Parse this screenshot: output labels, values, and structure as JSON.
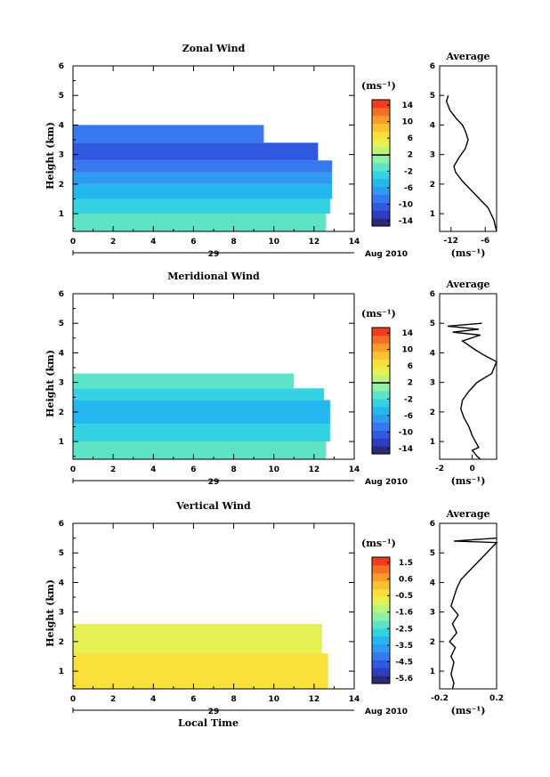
{
  "colorbar_colors": [
    "#2a2a78",
    "#2e3ec2",
    "#2f59e0",
    "#3878ee",
    "#2f9bf0",
    "#24b6ee",
    "#34d2e2",
    "#5ee3c6",
    "#8ef0a2",
    "#bcf47a",
    "#e6f052",
    "#fbe03a",
    "#fcc12e",
    "#fa9c28",
    "#f57024",
    "#ee3e1e"
  ],
  "common": {
    "x_ticks": [
      0,
      2,
      4,
      6,
      8,
      10,
      12,
      14
    ],
    "xlim": [
      0,
      14
    ],
    "date_label": "29",
    "month_label": "Aug 2010",
    "y_ticks": [
      1,
      2,
      3,
      4,
      5,
      6
    ],
    "ylim": [
      0.4,
      6
    ],
    "ylabel": "Height (km)",
    "unit_label": "(ms⁻¹)",
    "avg_title": "Average",
    "avg_xlabel": "(ms⁻¹)",
    "xlabel_bottom": "Local Time"
  },
  "chart_data": [
    {
      "type": "heatmap",
      "title": "Zonal Wind",
      "colorbar_ticks": [
        "14",
        "10",
        "6",
        "2",
        "-2",
        "-6",
        "-10",
        "-14"
      ],
      "colorbar_marker": 2,
      "colorbar_range": [
        -16,
        16
      ],
      "bands": [
        {
          "y0": 0.4,
          "y1": 1.0,
          "color": "#5ee3c6",
          "x1": 12.6
        },
        {
          "y0": 1.0,
          "y1": 1.5,
          "color": "#34d2e2",
          "x1": 12.8
        },
        {
          "y0": 1.5,
          "y1": 2.0,
          "color": "#24b6ee",
          "x1": 12.9
        },
        {
          "y0": 2.0,
          "y1": 2.4,
          "color": "#2f9bf0",
          "x1": 12.9
        },
        {
          "y0": 2.4,
          "y1": 2.8,
          "color": "#3878ee",
          "x1": 12.9
        },
        {
          "y0": 2.8,
          "y1": 3.4,
          "color": "#2f59e0",
          "x1": 12.2
        },
        {
          "y0": 3.4,
          "y1": 4.0,
          "color": "#3878ee",
          "x1": 9.5
        }
      ],
      "profile": {
        "xlim": [
          -14,
          -4
        ],
        "x_ticks": [
          -12,
          -6
        ],
        "x": [
          -12.5,
          -12.8,
          -12.2,
          -11.0,
          -10.0,
          -9.5,
          -9.0,
          -9.5,
          -10.6,
          -11.5,
          -11.2,
          -10.0,
          -8.5,
          -7.0,
          -5.5,
          -4.5,
          -4.0
        ],
        "y": [
          5.0,
          4.8,
          4.5,
          4.2,
          4.0,
          3.8,
          3.5,
          3.2,
          2.9,
          2.6,
          2.4,
          2.1,
          1.8,
          1.5,
          1.2,
          0.8,
          0.4
        ]
      }
    },
    {
      "type": "heatmap",
      "title": "Meridional Wind",
      "colorbar_ticks": [
        "14",
        "10",
        "6",
        "2",
        "-2",
        "-6",
        "-10",
        "-14"
      ],
      "colorbar_marker": 2,
      "colorbar_range": [
        -16,
        16
      ],
      "bands": [
        {
          "y0": 0.4,
          "y1": 1.0,
          "color": "#5ee3c6",
          "x1": 12.6
        },
        {
          "y0": 1.0,
          "y1": 1.6,
          "color": "#34d2e2",
          "x1": 12.8
        },
        {
          "y0": 1.6,
          "y1": 2.4,
          "color": "#24b6ee",
          "x1": 12.8
        },
        {
          "y0": 2.4,
          "y1": 2.8,
          "color": "#34d2e2",
          "x1": 12.5
        },
        {
          "y0": 2.8,
          "y1": 3.3,
          "color": "#5ee3c6",
          "x1": 11.0
        }
      ],
      "profile": {
        "xlim": [
          -2,
          1.5
        ],
        "x_ticks": [
          -2,
          0
        ],
        "x": [
          0.6,
          -1.5,
          0.4,
          -1.2,
          0.5,
          -0.6,
          0.2,
          0.8,
          1.5,
          1.2,
          0.3,
          -0.2,
          -0.6,
          -0.7,
          -0.5,
          -0.2,
          0.0,
          0.2,
          0.4,
          0.0,
          0.3,
          0.5
        ],
        "y": [
          5.0,
          4.9,
          4.8,
          4.7,
          4.6,
          4.4,
          4.1,
          3.9,
          3.7,
          3.3,
          3.0,
          2.7,
          2.4,
          2.1,
          1.8,
          1.5,
          1.2,
          1.0,
          0.8,
          0.7,
          0.5,
          0.4
        ]
      }
    },
    {
      "type": "heatmap",
      "title": "Vertical Wind",
      "colorbar_ticks": [
        "1.5",
        "0.6",
        "-0.5",
        "-1.6",
        "-2.5",
        "-3.5",
        "-4.5",
        "-5.6"
      ],
      "colorbar_marker": null,
      "colorbar_range": [
        -6,
        2
      ],
      "bands": [
        {
          "y0": 0.4,
          "y1": 1.6,
          "color": "#fbe03a",
          "x1": 12.7
        },
        {
          "y0": 1.6,
          "y1": 2.6,
          "color": "#e6f052",
          "x1": 12.4
        }
      ],
      "profile": {
        "xlim": [
          -0.2,
          0.2
        ],
        "x_ticks": [
          -0.2,
          0.2
        ],
        "x": [
          0.2,
          -0.1,
          0.2,
          -0.05,
          -0.08,
          -0.1,
          -0.12,
          -0.07,
          -0.11,
          -0.08,
          -0.13,
          -0.09,
          -0.12,
          -0.1,
          -0.11,
          -0.12,
          -0.1,
          -0.11
        ],
        "y": [
          5.5,
          5.4,
          5.35,
          4.1,
          3.8,
          3.5,
          3.2,
          2.9,
          2.6,
          2.3,
          2.0,
          1.8,
          1.5,
          1.3,
          1.1,
          0.9,
          0.6,
          0.4
        ]
      }
    }
  ]
}
